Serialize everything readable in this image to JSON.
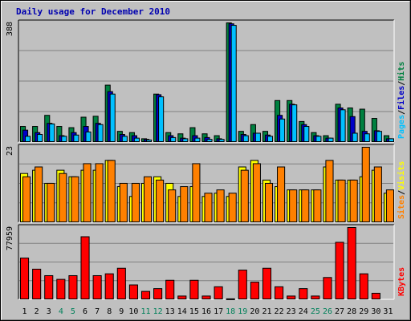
{
  "chart_data": {
    "type": "bar",
    "title": "Daily usage for December 2010",
    "days": [
      "1",
      "2",
      "3",
      "4",
      "5",
      "6",
      "7",
      "8",
      "9",
      "10",
      "11",
      "12",
      "13",
      "14",
      "15",
      "16",
      "17",
      "18",
      "19",
      "20",
      "21",
      "22",
      "23",
      "24",
      "25",
      "26",
      "27",
      "28",
      "29",
      "30",
      "31"
    ],
    "weekend_days": [
      "4",
      "5",
      "11",
      "12",
      "18",
      "19",
      "25",
      "26"
    ],
    "panels": [
      {
        "id": "hits-files-pages",
        "scale_label": "388",
        "ylim": [
          0,
          388
        ],
        "legend": [
          "Pages",
          "Files",
          "Hits"
        ],
        "series": [
          {
            "name": "Hits",
            "color": "#008040",
            "values": [
              52,
              52,
              88,
              52,
              48,
              82,
              85,
              186,
              36,
              32,
              12,
              157,
              32,
              28,
              48,
              28,
              22,
              388,
              36,
              58,
              36,
              136,
              136,
              68,
              32,
              22,
              124,
              112,
              108,
              78,
              22
            ]
          },
          {
            "name": "Files",
            "color": "#0000c8",
            "values": [
              40,
              32,
              62,
              22,
              32,
              52,
              62,
              165,
              26,
              22,
              10,
              155,
              22,
              14,
              22,
              16,
              12,
              385,
              26,
              30,
              24,
              88,
              124,
              58,
              22,
              14,
              112,
              84,
              36,
              38,
              12
            ]
          },
          {
            "name": "Pages",
            "color": "#00c0ff",
            "values": [
              20,
              26,
              60,
              20,
              24,
              34,
              58,
              157,
              20,
              14,
              8,
              148,
              16,
              12,
              14,
              10,
              10,
              380,
              22,
              30,
              20,
              76,
              122,
              52,
              20,
              14,
              106,
              30,
              28,
              36,
              12
            ]
          }
        ]
      },
      {
        "id": "visits-sites",
        "scale_label": "23",
        "ylim": [
          0,
          23
        ],
        "legend": [
          "Sites",
          "Visits"
        ],
        "series": [
          {
            "name": "Visits",
            "color": "#ffff00",
            "values": [
              15,
              16,
              12,
              16,
              14,
              16,
              16,
              19,
              11,
              8,
              12,
              14,
              12,
              8,
              11,
              8,
              9,
              8,
              17,
              19,
              13,
              11,
              10,
              10,
              10,
              17,
              13,
              13,
              14,
              16,
              9
            ]
          },
          {
            "name": "Sites",
            "color": "#ff8000",
            "values": [
              14,
              17,
              12,
              15,
              14,
              18,
              18,
              19,
              12,
              12,
              14,
              13,
              10,
              11,
              18,
              9,
              10,
              9,
              16,
              18,
              12,
              17,
              10,
              10,
              10,
              19,
              13,
              13,
              23,
              17,
              10
            ]
          }
        ]
      },
      {
        "id": "kbytes",
        "scale_label": "77959",
        "ylim": [
          0,
          77959
        ],
        "legend": [
          "KBytes"
        ],
        "series": [
          {
            "name": "KBytes",
            "color": "#ff0000",
            "values": [
              45000,
              33000,
              26000,
              22000,
              26000,
              68000,
              26000,
              28000,
              34000,
              16000,
              9000,
              12000,
              21000,
              4000,
              21000,
              4000,
              14000,
              1000,
              32000,
              19000,
              34000,
              14000,
              4000,
              12000,
              4000,
              24000,
              62000,
              77959,
              28000,
              7000,
              0
            ]
          }
        ]
      }
    ]
  }
}
